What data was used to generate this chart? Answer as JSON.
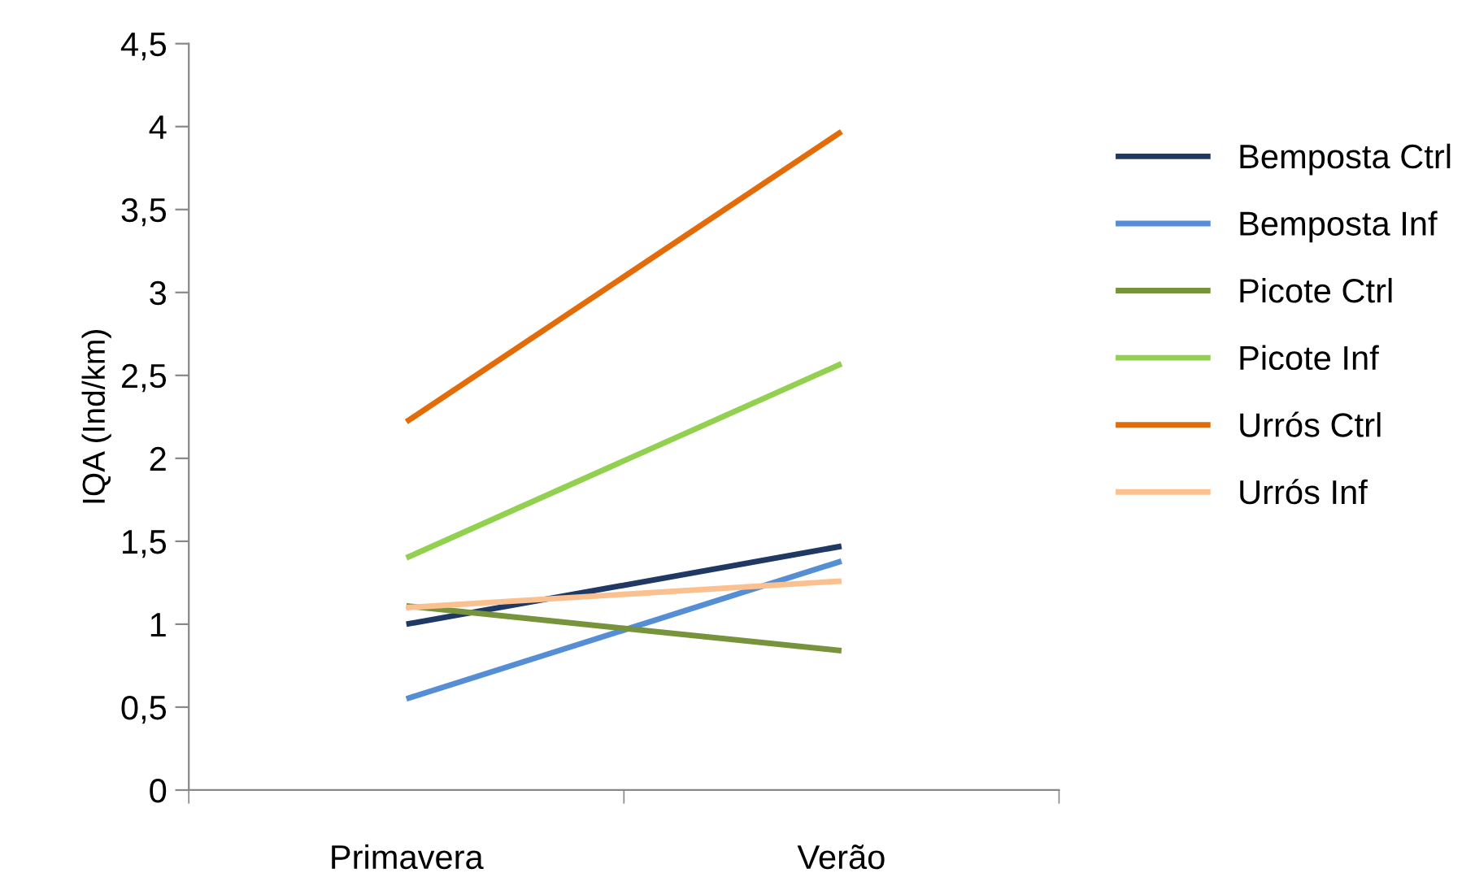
{
  "chart_data": {
    "type": "line",
    "ylabel": "IQA (Ind/km)",
    "categories": [
      "Primavera",
      "Verão"
    ],
    "series": [
      {
        "name": "Bemposta Ctrl",
        "color": "#1f3864",
        "values": [
          1.0,
          1.47
        ]
      },
      {
        "name": "Bemposta Inf",
        "color": "#558ed5",
        "values": [
          0.55,
          1.38
        ]
      },
      {
        "name": "Picote Ctrl",
        "color": "#77933c",
        "values": [
          1.11,
          0.84
        ]
      },
      {
        "name": "Picote Inf",
        "color": "#92d050",
        "values": [
          1.4,
          2.57
        ]
      },
      {
        "name": "Urrós Ctrl",
        "color": "#e36c09",
        "values": [
          2.22,
          3.97
        ]
      },
      {
        "name": "Urrós Inf",
        "color": "#fac090",
        "values": [
          1.1,
          1.26
        ]
      }
    ],
    "ylim": [
      0,
      4.5
    ],
    "yticks": [
      0,
      {
        "value": 0.5,
        "label": "0,5"
      },
      1,
      {
        "value": 1.5,
        "label": "1,5"
      },
      2,
      {
        "value": 2.5,
        "label": "2,5"
      },
      3,
      {
        "value": 3.5,
        "label": "3,5"
      },
      4,
      {
        "value": 4.5,
        "label": "4,5"
      }
    ],
    "grid": false,
    "legend": "right",
    "marker": "none",
    "line_style": "solid"
  }
}
